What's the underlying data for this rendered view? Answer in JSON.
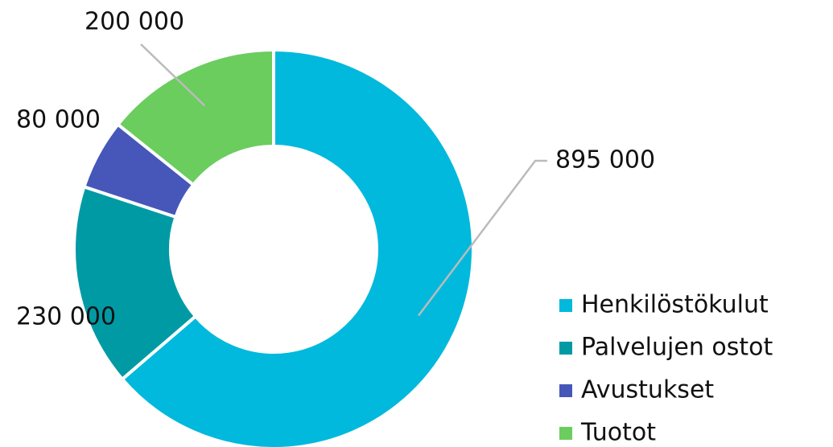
{
  "chart_data": {
    "type": "donut",
    "categories": [
      "Henkilöstökulut",
      "Palvelujen ostot",
      "Avustukset",
      "Tuotot"
    ],
    "values": [
      895000,
      230000,
      80000,
      200000
    ],
    "value_labels": [
      "895 000",
      "230 000",
      "80 000",
      "200 000"
    ],
    "colors": [
      "#00b9dc",
      "#009aa5",
      "#4657b9",
      "#6acd5e"
    ],
    "legend": "right"
  }
}
